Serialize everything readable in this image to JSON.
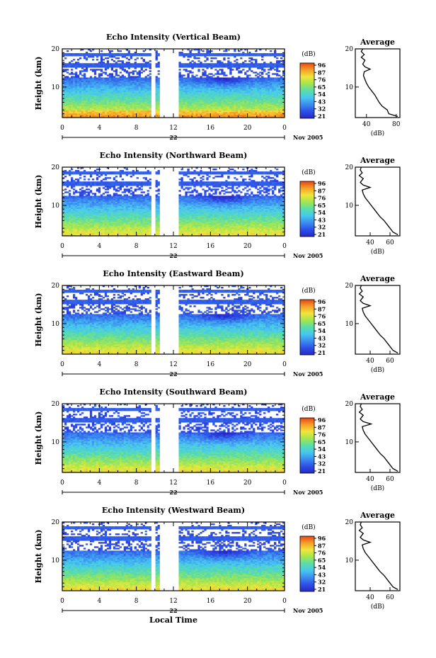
{
  "chart_data": [
    {
      "type": "heatmap",
      "title": "Echo Intensity (Vertical Beam)",
      "ylabel": "Height (km)",
      "xticks": [
        "0",
        "4",
        "8",
        "12",
        "16",
        "20",
        "0"
      ],
      "yticks": [
        "20",
        "10"
      ],
      "xlim": [
        0,
        24
      ],
      "ylim": [
        2,
        20
      ],
      "day_label": "22",
      "month_label": "Nov 2005",
      "colorbar_unit": "(dB)",
      "colorbar_ticks": [
        "96",
        "87",
        "76",
        "65",
        "54",
        "43",
        "32",
        "21"
      ],
      "data_gaps": [
        [
          9.6,
          10.0
        ],
        [
          10.6,
          12.6
        ]
      ],
      "average_profile": {
        "title": "Average",
        "xlabel": "(dB)",
        "xticks": [
          "40",
          "80"
        ],
        "yticks": [
          "20",
          "10"
        ],
        "xlim": [
          25,
          85
        ],
        "ylim": [
          2,
          20
        ],
        "height": [
          2.3,
          3.0,
          4,
          5,
          6,
          7,
          8,
          9,
          10,
          11,
          12,
          13,
          14,
          14.7,
          15.3,
          16,
          17,
          17.8,
          18.5,
          19.3,
          20
        ],
        "db": [
          82,
          70,
          68,
          61,
          57,
          54,
          51,
          47,
          43,
          40,
          38,
          36,
          37,
          45,
          38,
          35,
          38,
          33,
          37,
          33,
          35
        ]
      }
    },
    {
      "type": "heatmap",
      "title": "Echo Intensity (Northward Beam)",
      "ylabel": "Height (km)",
      "xticks": [
        "0",
        "4",
        "8",
        "12",
        "16",
        "20",
        "0"
      ],
      "yticks": [
        "20",
        "10"
      ],
      "xlim": [
        0,
        24
      ],
      "ylim": [
        2,
        20
      ],
      "day_label": "22",
      "month_label": "Nov 2005",
      "colorbar_unit": "(dB)",
      "colorbar_ticks": [
        "96",
        "87",
        "76",
        "65",
        "54",
        "43",
        "32",
        "21"
      ],
      "data_gaps": [
        [
          9.6,
          10.0
        ],
        [
          10.6,
          12.6
        ]
      ],
      "average_profile": {
        "title": "Average",
        "xlabel": "(dB)",
        "xticks": [
          "40",
          "60"
        ],
        "yticks": [
          "20",
          "10"
        ],
        "xlim": [
          25,
          70
        ],
        "ylim": [
          2,
          20
        ],
        "height": [
          2.3,
          3.0,
          4,
          5,
          6,
          7,
          8,
          9,
          10,
          11,
          12,
          13,
          14,
          14.7,
          15.3,
          16,
          17,
          17.8,
          18.5,
          19.3,
          20
        ],
        "db": [
          68,
          63,
          60,
          57,
          54,
          50,
          47,
          44,
          41,
          38,
          35,
          33,
          32,
          40,
          33,
          30,
          33,
          29,
          32,
          30,
          31
        ]
      }
    },
    {
      "type": "heatmap",
      "title": "Echo Intensity (Eastward Beam)",
      "ylabel": "Height (km)",
      "xticks": [
        "0",
        "4",
        "8",
        "12",
        "16",
        "20",
        "0"
      ],
      "yticks": [
        "20",
        "10"
      ],
      "xlim": [
        0,
        24
      ],
      "ylim": [
        2,
        20
      ],
      "day_label": "22",
      "month_label": "Nov 2005",
      "colorbar_unit": "(dB)",
      "colorbar_ticks": [
        "96",
        "87",
        "76",
        "65",
        "54",
        "43",
        "32",
        "21"
      ],
      "data_gaps": [
        [
          9.6,
          10.0
        ],
        [
          10.6,
          12.6
        ]
      ],
      "average_profile": {
        "title": "Average",
        "xlabel": "(dB)",
        "xticks": [
          "40",
          "60"
        ],
        "yticks": [
          "20",
          "10"
        ],
        "xlim": [
          25,
          70
        ],
        "ylim": [
          2,
          20
        ],
        "height": [
          2.3,
          3.0,
          4,
          5,
          6,
          7,
          8,
          9,
          10,
          11,
          12,
          13,
          14,
          14.7,
          15.3,
          16,
          17,
          17.8,
          18.5,
          19.3,
          20
        ],
        "db": [
          68,
          63,
          60,
          57,
          54,
          50,
          47,
          44,
          41,
          38,
          35,
          33,
          32,
          40,
          33,
          30,
          33,
          29,
          32,
          30,
          31
        ]
      }
    },
    {
      "type": "heatmap",
      "title": "Echo Intensity (Southward Beam)",
      "ylabel": "Height (km)",
      "xticks": [
        "0",
        "4",
        "8",
        "12",
        "16",
        "20",
        "0"
      ],
      "yticks": [
        "20",
        "10"
      ],
      "xlim": [
        0,
        24
      ],
      "ylim": [
        2,
        20
      ],
      "day_label": "22",
      "month_label": "Nov 2005",
      "colorbar_unit": "(dB)",
      "colorbar_ticks": [
        "96",
        "87",
        "76",
        "65",
        "54",
        "43",
        "32",
        "21"
      ],
      "data_gaps": [
        [
          9.6,
          10.0
        ],
        [
          10.6,
          12.6
        ]
      ],
      "average_profile": {
        "title": "Average",
        "xlabel": "(dB)",
        "xticks": [
          "40",
          "60"
        ],
        "yticks": [
          "20",
          "10"
        ],
        "xlim": [
          25,
          70
        ],
        "ylim": [
          2,
          20
        ],
        "height": [
          2.3,
          3.0,
          4,
          5,
          6,
          7,
          8,
          9,
          10,
          11,
          12,
          13,
          14,
          14.7,
          15.3,
          16,
          17,
          17.8,
          18.5,
          19.3,
          20
        ],
        "db": [
          68,
          63,
          60,
          57,
          54,
          50,
          47,
          44,
          41,
          38,
          35,
          33,
          32,
          41,
          33,
          30,
          33,
          29,
          32,
          30,
          31
        ]
      }
    },
    {
      "type": "heatmap",
      "title": "Echo Intensity (Westward Beam)",
      "ylabel": "Height (km)",
      "xticks": [
        "0",
        "4",
        "8",
        "12",
        "16",
        "20",
        "0"
      ],
      "yticks": [
        "20",
        "10"
      ],
      "xlim": [
        0,
        24
      ],
      "ylim": [
        2,
        20
      ],
      "day_label": "22",
      "month_label": "Nov 2005",
      "colorbar_unit": "(dB)",
      "colorbar_ticks": [
        "96",
        "87",
        "76",
        "65",
        "54",
        "43",
        "32",
        "21"
      ],
      "data_gaps": [
        [
          9.6,
          10.0
        ],
        [
          10.6,
          12.6
        ]
      ],
      "average_profile": {
        "title": "Average",
        "xlabel": "(dB)",
        "xticks": [
          "40",
          "60"
        ],
        "yticks": [
          "20",
          "10"
        ],
        "xlim": [
          25,
          70
        ],
        "ylim": [
          2,
          20
        ],
        "height": [
          2.3,
          3.0,
          4,
          5,
          6,
          7,
          8,
          9,
          10,
          11,
          12,
          13,
          14,
          14.7,
          15.3,
          16,
          17,
          17.8,
          18.5,
          19.3,
          20
        ],
        "db": [
          68,
          63,
          60,
          57,
          54,
          50,
          47,
          44,
          41,
          38,
          35,
          33,
          32,
          40,
          33,
          30,
          33,
          29,
          32,
          30,
          31
        ]
      }
    }
  ],
  "xlabel_bottom": "Local Time",
  "colorscale": [
    "#2828c8",
    "#2d50e6",
    "#3c8cf0",
    "#46c8f0",
    "#5adcaa",
    "#a0e650",
    "#f0e63c",
    "#f5a028",
    "#e64614"
  ]
}
